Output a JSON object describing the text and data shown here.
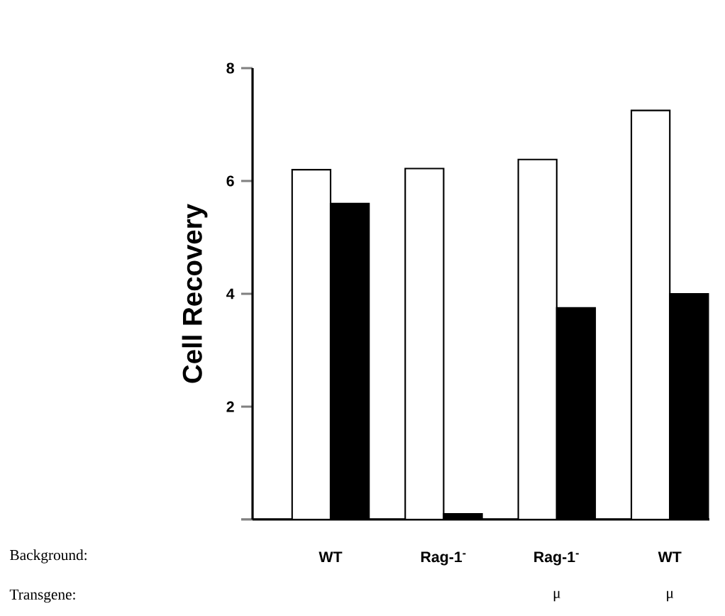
{
  "chart_data": {
    "type": "bar",
    "ylabel": "Cell Recovery",
    "categories": [
      "WT",
      "Rag-1$^{-}$",
      "Rag-1$^{-}$",
      "WT"
    ],
    "series": [
      {
        "color": "#ffffff",
        "values": [
          6.2,
          6.22,
          6.38,
          7.25
        ]
      },
      {
        "color": "#000000",
        "values": [
          5.6,
          0.1,
          3.75,
          4.0
        ]
      }
    ],
    "ylim": [
      0,
      8
    ],
    "yticks": [
      {
        "value": 0,
        "label": null
      },
      2,
      4,
      6,
      8
    ],
    "grid": false,
    "annotations": [
      "Background:",
      "Transgene:",
      "μ",
      "μ"
    ]
  }
}
